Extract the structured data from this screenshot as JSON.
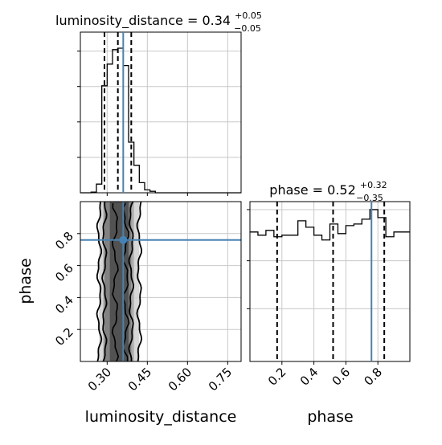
{
  "chart_data": [
    {
      "type": "histogram",
      "panel": "luminosity_distance marginal",
      "title": {
        "base": "luminosity_distance = 0.34",
        "sup": "+0.05",
        "sub": "−0.05"
      },
      "bin_edges": [
        0.2,
        0.22,
        0.24,
        0.26,
        0.28,
        0.3,
        0.32,
        0.34,
        0.36,
        0.38,
        0.4,
        0.42,
        0.44,
        0.46,
        0.48,
        0.5,
        0.52,
        0.54,
        0.56,
        0.58,
        0.6,
        0.62,
        0.64,
        0.66,
        0.68,
        0.7,
        0.72,
        0.74,
        0.76,
        0.78,
        0.8
      ],
      "counts": [
        0,
        0,
        0.005,
        0.06,
        0.74,
        0.89,
        0.99,
        1.0,
        0.88,
        0.35,
        0.19,
        0.07,
        0.02,
        0.01,
        0,
        0,
        0,
        0,
        0,
        0,
        0,
        0,
        0,
        0,
        0,
        0,
        0,
        0,
        0,
        0
      ],
      "quantile_lines": [
        0.29,
        0.34,
        0.39
      ],
      "truth": 0.36,
      "xlim": [
        0.2,
        0.8
      ],
      "grid": true
    },
    {
      "type": "histogram",
      "panel": "phase marginal",
      "title": {
        "base": "phase = 0.52",
        "sup": "+0.32",
        "sub": "−0.35"
      },
      "bin_edges": [
        0.0,
        0.05,
        0.1,
        0.15,
        0.2,
        0.25,
        0.3,
        0.35,
        0.4,
        0.45,
        0.5,
        0.55,
        0.6,
        0.65,
        0.7,
        0.75,
        0.8,
        0.85,
        0.9,
        0.95,
        1.0
      ],
      "counts": [
        0.81,
        0.79,
        0.82,
        0.78,
        0.79,
        0.79,
        0.88,
        0.84,
        0.79,
        0.76,
        0.86,
        0.8,
        0.85,
        0.86,
        0.89,
        0.95,
        0.9,
        0.78,
        0.81,
        0.81
      ],
      "quantile_lines": [
        0.17,
        0.52,
        0.84
      ],
      "truth": 0.76,
      "xlim": [
        0.0,
        1.0
      ],
      "xticks": [
        "0.2",
        "0.4",
        "0.6",
        "0.8"
      ],
      "grid": true
    },
    {
      "type": "scatter",
      "panel": "2D posterior",
      "xlabel": "luminosity_distance",
      "ylabel": "phase",
      "xlim": [
        0.2,
        0.8
      ],
      "ylim": [
        0.0,
        1.0
      ],
      "xticks": [
        "0.30",
        "0.45",
        "0.60",
        "0.75"
      ],
      "yticks": [
        "0.2",
        "0.4",
        "0.6",
        "0.8"
      ],
      "contour_ranges": {
        "inner": [
          0.31,
          0.38
        ],
        "middle": [
          0.29,
          0.39
        ],
        "outer": [
          0.27,
          0.42
        ]
      },
      "truth_point": {
        "x": 0.36,
        "y": 0.76
      },
      "grid": true
    }
  ],
  "colors": {
    "truth": "#4682b4",
    "hist": "#000000",
    "grid": "#c8c8c8",
    "scatter": "#bfbfbf"
  }
}
